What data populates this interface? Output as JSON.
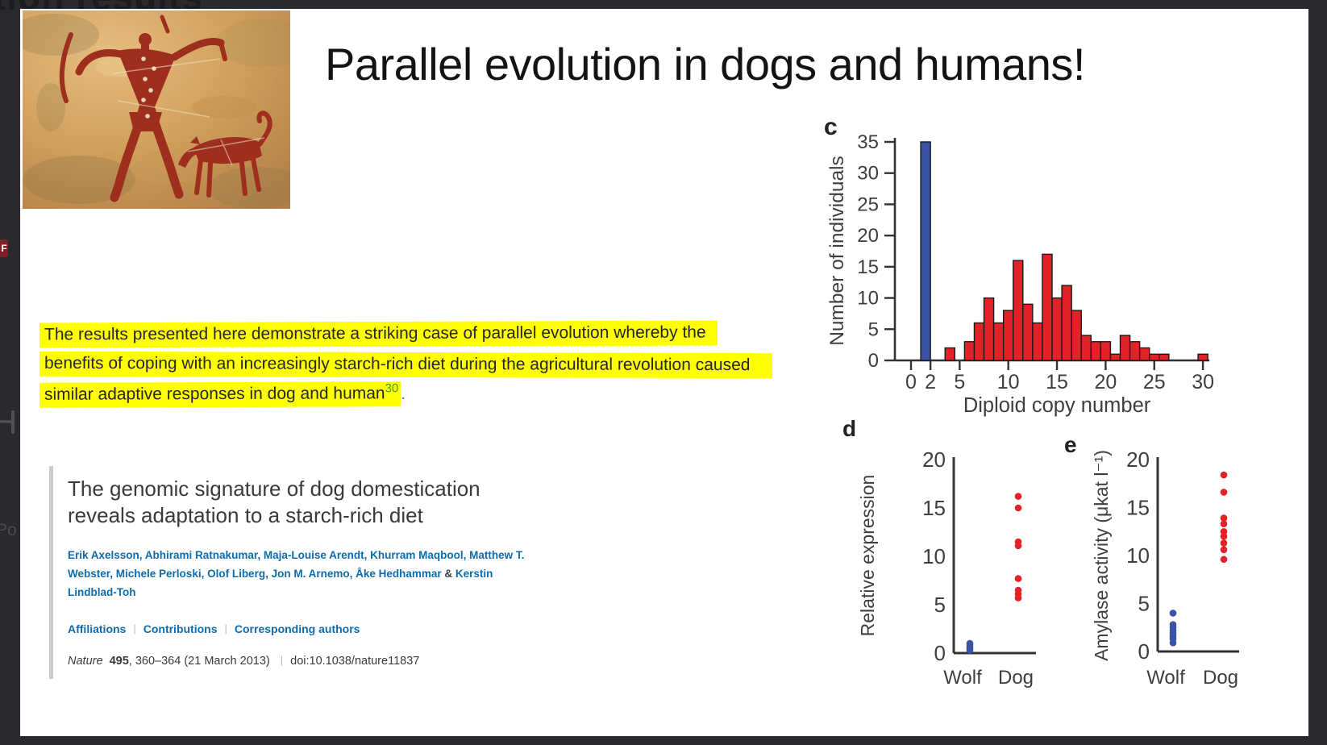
{
  "background": {
    "clipped_heading": "tion results",
    "pdf_badge_letter": "F",
    "left_fragment_1": "H",
    "left_fragment_2": "Po"
  },
  "slide": {
    "title": "Parallel evolution in dogs and humans!",
    "quote": {
      "line1": "The results presented here demonstrate a striking case of parallel evolution whereby the",
      "line2": "benefits of coping with an increasingly starch-rich diet during the agricultural revolution caused",
      "line3": "similar adaptive responses in dog and human",
      "reference": "30",
      "period": ".",
      "highlight_color": "#ffff00",
      "reference_color": "#3f9f3c"
    }
  },
  "paper": {
    "title_line1": "The genomic signature of dog domestication",
    "title_line2": "reveals adaptation to a starch-rich diet",
    "authors_line1": "Erik Axelsson, Abhirami Ratnakumar, Maja-Louise Arendt, Khurram Maqbool, Matthew T.",
    "authors_line2a": "Webster, Michele Perloski, Olof Liberg, Jon M. Arnemo, Åke Hedhammar",
    "ampersand": "&",
    "authors_line2b": "Kerstin",
    "authors_line3": "Lindblad-Toh",
    "links": [
      "Affiliations",
      "Contributions",
      "Corresponding authors"
    ],
    "separator": "|",
    "journal": "Nature",
    "volume": "495",
    "pages": ", 360–364 (21 March 2013)",
    "doi": "doi:10.1038/nature11837",
    "link_color": "#0d6cae"
  },
  "chart_data": [
    {
      "panel": "c",
      "type": "bar",
      "title": "",
      "ylabel": "Number of individuals",
      "xlabel": "Diploid copy number",
      "ylim": [
        0,
        35
      ],
      "yticks": [
        0,
        5,
        10,
        15,
        20,
        25,
        30,
        35
      ],
      "xticks": [
        0,
        2,
        5,
        10,
        15,
        20,
        25,
        30
      ],
      "xlim": [
        -1.7,
        31
      ],
      "bar_width": 1,
      "series": [
        {
          "name": "Wolves",
          "color": "#3a53a4",
          "points": [
            {
              "x": 2,
              "y": 35
            }
          ]
        },
        {
          "name": "Dogs",
          "color": "#e32227",
          "points": [
            {
              "x": 4,
              "y": 2
            },
            {
              "x": 6,
              "y": 3
            },
            {
              "x": 7,
              "y": 6
            },
            {
              "x": 8,
              "y": 10
            },
            {
              "x": 9,
              "y": 6
            },
            {
              "x": 10,
              "y": 8
            },
            {
              "x": 11,
              "y": 16
            },
            {
              "x": 12,
              "y": 9
            },
            {
              "x": 13,
              "y": 6
            },
            {
              "x": 14,
              "y": 17
            },
            {
              "x": 15,
              "y": 10
            },
            {
              "x": 16,
              "y": 12
            },
            {
              "x": 17,
              "y": 8
            },
            {
              "x": 18,
              "y": 4
            },
            {
              "x": 19,
              "y": 3
            },
            {
              "x": 20,
              "y": 3
            },
            {
              "x": 21,
              "y": 1
            },
            {
              "x": 22,
              "y": 4
            },
            {
              "x": 23,
              "y": 3
            },
            {
              "x": 24,
              "y": 2
            },
            {
              "x": 25,
              "y": 1
            },
            {
              "x": 26,
              "y": 1
            },
            {
              "x": 30,
              "y": 1
            }
          ]
        }
      ]
    },
    {
      "panel": "d",
      "type": "scatter",
      "ylabel": "Relative expression",
      "xlabel": "",
      "ylim": [
        0,
        20
      ],
      "yticks": [
        0,
        5,
        10,
        15,
        20
      ],
      "categories": [
        "Wolf",
        "Dog"
      ],
      "series": [
        {
          "name": "Wolf",
          "color": "#3a53a4",
          "values": [
            0.3,
            0.5,
            0.6,
            0.8,
            1.0
          ]
        },
        {
          "name": "Dog",
          "color": "#e32227",
          "values": [
            16.2,
            15.0,
            11.5,
            11.1,
            7.7,
            6.5,
            6.1,
            5.7
          ]
        }
      ]
    },
    {
      "panel": "e",
      "type": "scatter",
      "ylabel": "Amylase activity (μkat l⁻¹)",
      "xlabel": "",
      "ylim": [
        0,
        20
      ],
      "yticks": [
        0,
        5,
        10,
        15,
        20
      ],
      "categories": [
        "Wolf",
        "Dog"
      ],
      "series": [
        {
          "name": "Wolf",
          "color": "#3a53a4",
          "values": [
            0.9,
            1.3,
            1.6,
            1.9,
            2.2,
            2.5,
            2.8,
            4.0
          ]
        },
        {
          "name": "Dog",
          "color": "#e32227",
          "values": [
            18.4,
            16.6,
            13.9,
            13.3,
            12.5,
            12.0,
            11.3,
            10.6,
            9.6
          ]
        }
      ]
    }
  ]
}
